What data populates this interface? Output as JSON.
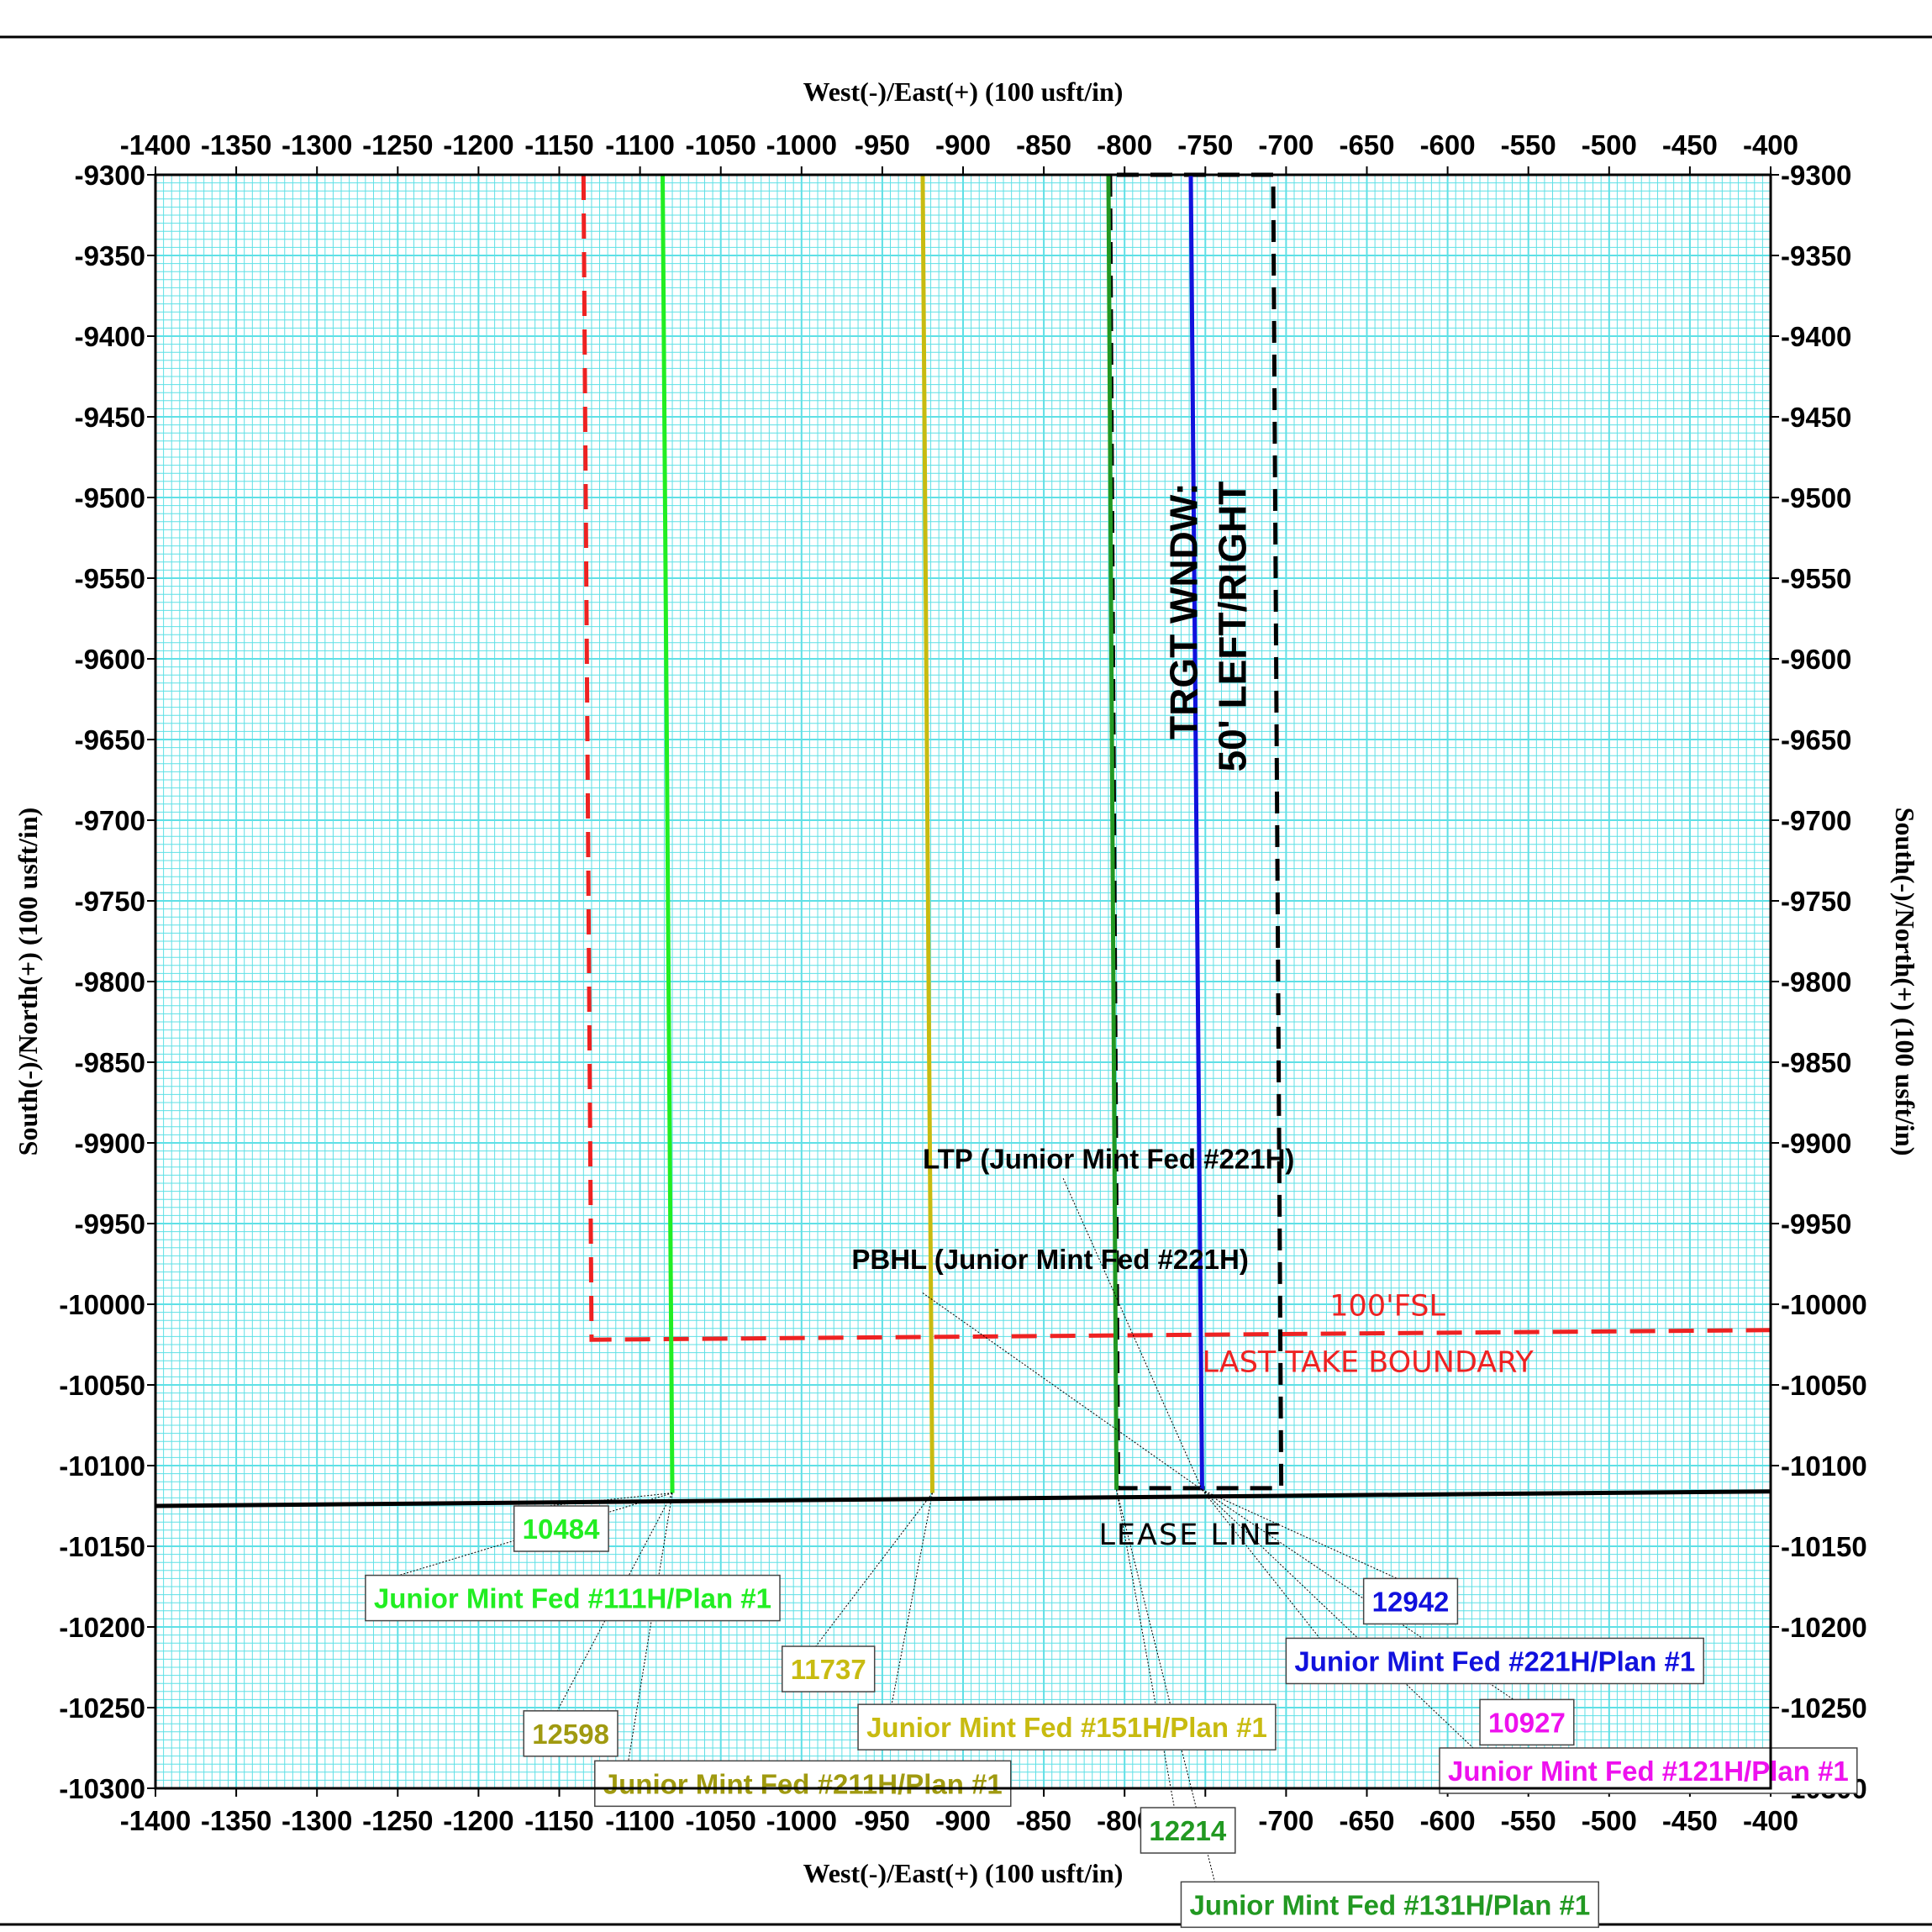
{
  "chart_data": {
    "type": "line",
    "xlabel": "West(-)/East(+) (100 usft/in)",
    "ylabel": "South(-)/North(+) (100 usft/in)",
    "xlim": [
      -1400,
      -400
    ],
    "ylim": [
      -10300,
      -9300
    ],
    "x_ticks": [
      -1400,
      -1350,
      -1300,
      -1250,
      -1200,
      -1150,
      -1100,
      -1050,
      -1000,
      -950,
      -900,
      -850,
      -800,
      -750,
      -700,
      -650,
      -600,
      -550,
      -500,
      -450,
      -400
    ],
    "y_ticks": [
      -9300,
      -9350,
      -9400,
      -9450,
      -9500,
      -9550,
      -9600,
      -9650,
      -9700,
      -9750,
      -9800,
      -9850,
      -9900,
      -9950,
      -10000,
      -10050,
      -10100,
      -10150,
      -10200,
      -10250,
      -10300
    ],
    "x_tick_labels": [
      "-1400",
      "-1350",
      "-1300",
      "-1250",
      "-1200",
      "-1150",
      "-1100",
      "-1050",
      "-1000",
      "-950",
      "-900",
      "-850",
      "-800",
      "-750",
      "-700",
      "-650",
      "-600",
      "-550",
      "-500",
      "-450",
      "-400"
    ],
    "y_tick_labels": [
      "-9300",
      "-9350",
      "-9400",
      "-9450",
      "-9500",
      "-9550",
      "-9600",
      "-9650",
      "-9700",
      "-9750",
      "-9800",
      "-9850",
      "-9900",
      "-9950",
      "-10000",
      "-10050",
      "-10100",
      "-10150",
      "-10200",
      "-10250",
      "-10300"
    ],
    "grid": true,
    "series": [
      {
        "name": "Junior Mint Fed #111H/Plan #1",
        "color": "#22ee22",
        "x": [
          -1086,
          -1080
        ],
        "y": [
          -9300,
          -10117
        ]
      },
      {
        "name": "Junior Mint Fed #151H/Plan #1",
        "color": "#c8bb10",
        "x": [
          -925,
          -919
        ],
        "y": [
          -9300,
          -10117
        ]
      },
      {
        "name": "Junior Mint Fed #131H/Plan #1",
        "color": "#229922",
        "x": [
          -810,
          -805
        ],
        "y": [
          -9300,
          -10115
        ]
      },
      {
        "name": "Junior Mint Fed #221H/Plan #1",
        "color": "#1111dd",
        "x": [
          -759,
          -752
        ],
        "y": [
          -9300,
          -10115
        ]
      }
    ],
    "boundaries": [
      {
        "label": "100'FSL",
        "sublabel": "LAST TAKE BOUNDARY",
        "color": "#ee2222",
        "dashed": true,
        "x": [
          -1135,
          -1130,
          -1130,
          -400
        ],
        "y": [
          -9300,
          -10022,
          -10022,
          -10016
        ]
      },
      {
        "label": "TRGT WNDW:",
        "sublabel": "50' LEFT/RIGHT",
        "color": "#000000",
        "dashed": true,
        "x": [
          -809,
          -804,
          -703,
          -708,
          -809
        ],
        "y": [
          -9300,
          -10114,
          -10114,
          -9300,
          -9300
        ]
      },
      {
        "label": "LEASE LINE",
        "color": "#000000",
        "dashed": false,
        "x": [
          -1400,
          -400
        ],
        "y": [
          -10125,
          -10116
        ]
      }
    ],
    "annotations": [
      {
        "text": "LTP (Junior Mint Fed #221H)",
        "color": "#000000",
        "x": -925,
        "y": -9916
      },
      {
        "text": "PBHL (Junior Mint Fed #221H)",
        "color": "#000000",
        "x": -969,
        "y": -9978
      }
    ],
    "boxed_labels": [
      {
        "text": "10484",
        "color": "#22ee22",
        "bx": -1178,
        "by": -10125,
        "ax": -1080,
        "ay": -10117
      },
      {
        "text": "Junior Mint Fed #111H/Plan #1",
        "color": "#22ee22",
        "bx": -1270,
        "by": -10168,
        "ax": -1080,
        "ay": -10117
      },
      {
        "text": "12598",
        "color": "#a09a10",
        "bx": -1172,
        "by": -10252,
        "ax": -1080,
        "ay": -10117
      },
      {
        "text": "Junior Mint Fed #211H/Plan #1",
        "color": "#a09a10",
        "bx": -1128,
        "by": -10283,
        "ax": -1080,
        "ay": -10117
      },
      {
        "text": "11737",
        "color": "#c8bb10",
        "bx": -1012,
        "by": -10212,
        "ax": -919,
        "ay": -10117
      },
      {
        "text": "Junior Mint Fed #151H/Plan #1",
        "color": "#c8bb10",
        "bx": -965,
        "by": -10248,
        "ax": -919,
        "ay": -10117
      },
      {
        "text": "12942",
        "color": "#1111dd",
        "bx": -652,
        "by": -10170,
        "ax": -752,
        "ay": -10115
      },
      {
        "text": "Junior Mint Fed #221H/Plan #1",
        "color": "#1111dd",
        "bx": -700,
        "by": -10207,
        "ax": -752,
        "ay": -10115
      },
      {
        "text": "10927",
        "color": "#ee11ee",
        "bx": -580,
        "by": -10245,
        "ax": -752,
        "ay": -10115
      },
      {
        "text": "Junior Mint Fed #121H/Plan #1",
        "color": "#ee11ee",
        "bx": -605,
        "by": -10275,
        "ax": -752,
        "ay": -10115
      },
      {
        "text": "12214",
        "color": "#229922",
        "bx": -790,
        "by": -10312,
        "ax": -805,
        "ay": -10115
      },
      {
        "text": "Junior Mint Fed #131H/Plan #1",
        "color": "#229922",
        "bx": -765,
        "by": -10358,
        "ax": -805,
        "ay": -10115
      }
    ]
  }
}
